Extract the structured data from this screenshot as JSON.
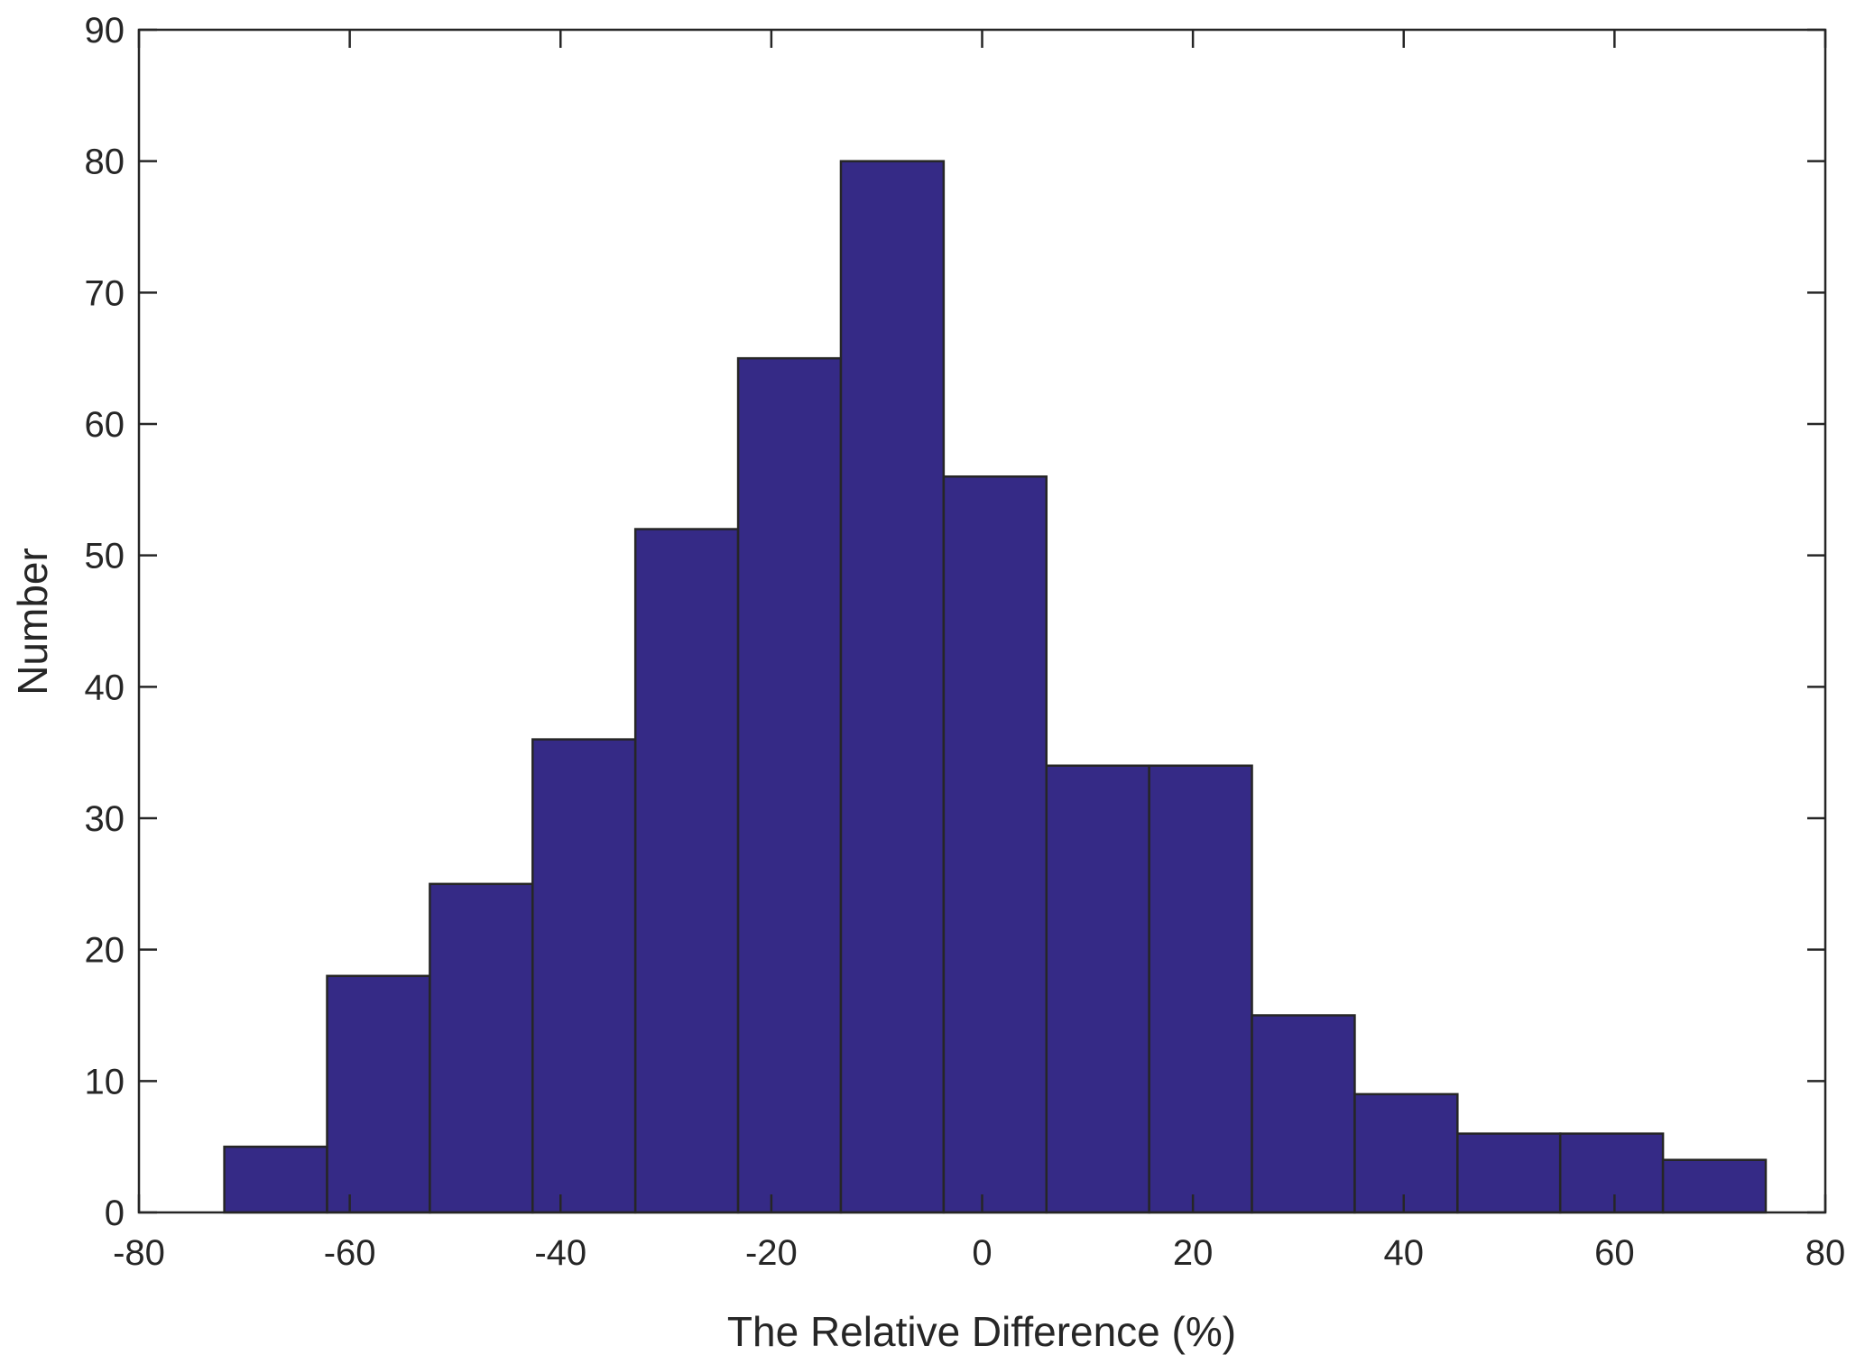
{
  "chart_data": {
    "type": "bar",
    "subtype": "histogram",
    "title": "",
    "xlabel": "The Relative Difference (%)",
    "ylabel": "Number",
    "xlim": [
      -80,
      80
    ],
    "ylim": [
      0,
      90
    ],
    "xticks": [
      "-80",
      "-60",
      "-40",
      "-20",
      "0",
      "20",
      "40",
      "60",
      "80"
    ],
    "yticks": [
      "0",
      "10",
      "20",
      "30",
      "40",
      "50",
      "60",
      "70",
      "80",
      "90"
    ],
    "bin_edges": [
      -71.9,
      -62.15,
      -52.4,
      -42.65,
      -32.9,
      -23.15,
      -13.4,
      -3.65,
      6.1,
      15.85,
      25.6,
      35.35,
      45.1,
      54.85,
      64.6,
      74.35
    ],
    "values": [
      5,
      18,
      25,
      36,
      52,
      65,
      80,
      56,
      34,
      34,
      15,
      9,
      6,
      6,
      4
    ],
    "grid": false,
    "legend": "none",
    "colors": {
      "bar_fill": "#352a86",
      "bar_edge": "#262626",
      "axis": "#262626"
    }
  }
}
